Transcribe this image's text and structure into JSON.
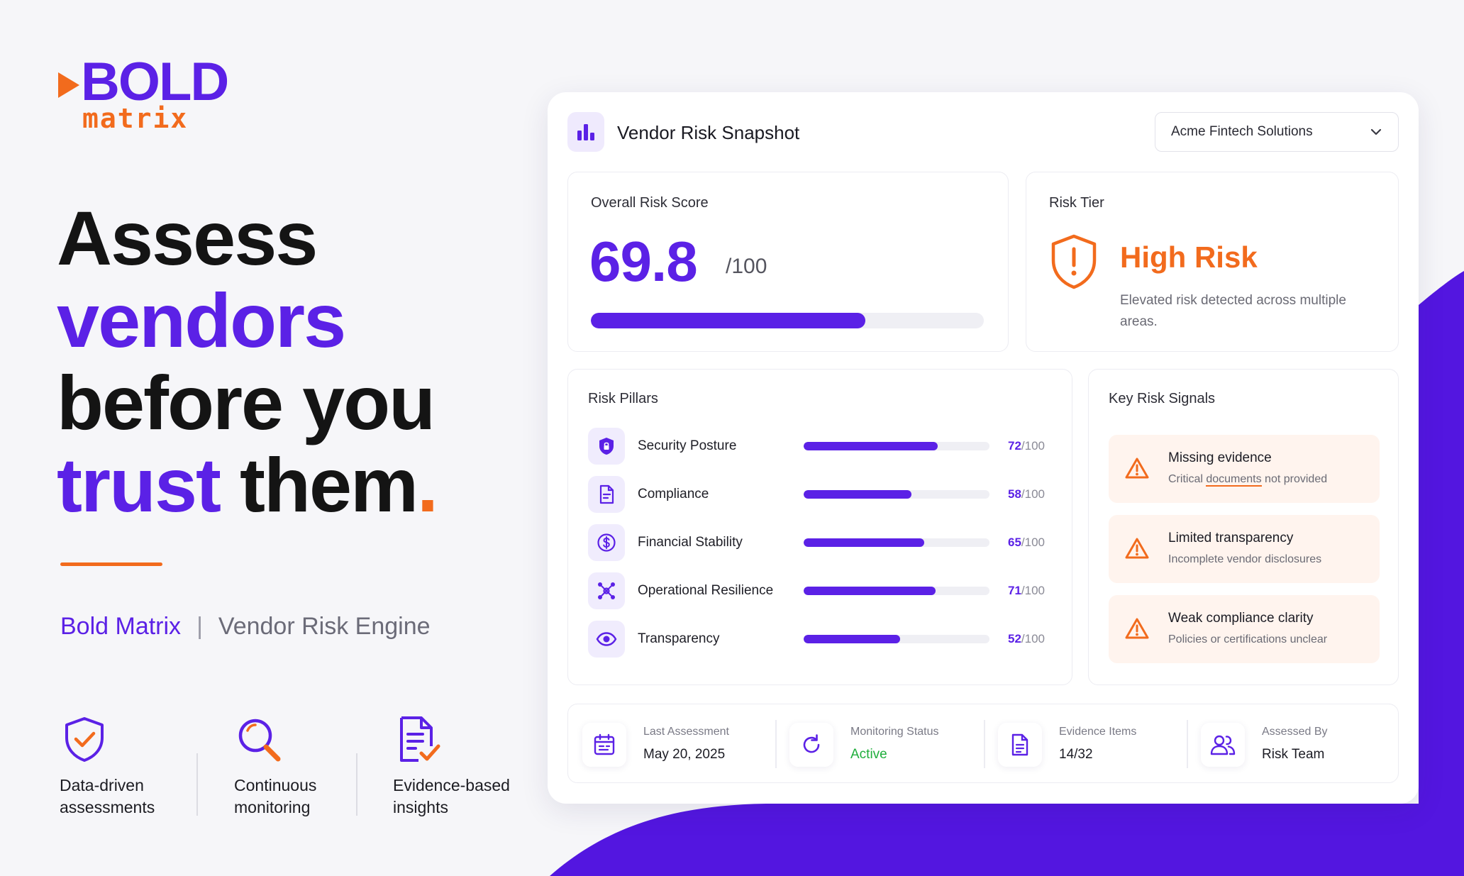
{
  "brand": {
    "logo_top": "BOLD",
    "logo_bottom": "matrix",
    "name": "Bold Matrix",
    "separator": "|",
    "product": "Vendor Risk Engine"
  },
  "headline": {
    "line1": "Assess",
    "line2": "vendors",
    "line3": "before you",
    "line4_a": "trust",
    "line4_b": " them",
    "line4_dot": "."
  },
  "features": [
    {
      "icon": "shield-check-icon",
      "label": "Data-driven assessments"
    },
    {
      "icon": "magnifier-icon",
      "label": "Continuous monitoring"
    },
    {
      "icon": "document-check-icon",
      "label": "Evidence-based insights"
    }
  ],
  "card": {
    "title": "Vendor Risk Snapshot",
    "vendor_select": {
      "value": "Acme Fintech Solutions"
    },
    "score": {
      "label": "Overall Risk Score",
      "value": "69.8",
      "max": "/100",
      "fraction": 0.698
    },
    "tier": {
      "label": "Risk Tier",
      "value": "High Risk",
      "description": "Elevated risk detected across multiple areas."
    },
    "pillars": {
      "title": "Risk Pillars",
      "items": [
        {
          "name": "Security Posture",
          "score": "72",
          "max": "/100",
          "fraction": 0.72,
          "icon": "shield-lock-icon"
        },
        {
          "name": "Compliance",
          "score": "58",
          "max": "/100",
          "fraction": 0.58,
          "icon": "document-icon"
        },
        {
          "name": "Financial Stability",
          "score": "65",
          "max": "/100",
          "fraction": 0.65,
          "icon": "dollar-icon"
        },
        {
          "name": "Operational Resilience",
          "score": "71",
          "max": "/100",
          "fraction": 0.71,
          "icon": "network-icon"
        },
        {
          "name": "Transparency",
          "score": "52",
          "max": "/100",
          "fraction": 0.52,
          "icon": "eye-icon"
        }
      ]
    },
    "signals": {
      "title": "Key Risk Signals",
      "items": [
        {
          "title": "Missing evidence",
          "sub_before": "Critical ",
          "sub_underline": "documents",
          "sub_after": " not provided"
        },
        {
          "title": "Limited transparency",
          "sub_before": "Incomplete vendor disclosures",
          "sub_underline": "",
          "sub_after": ""
        },
        {
          "title": "Weak compliance clarity",
          "sub_before": "Policies or certifications unclear",
          "sub_underline": "",
          "sub_after": ""
        }
      ]
    },
    "footer": [
      {
        "label": "Last Assessment",
        "value": "May 20, 2025",
        "icon": "calendar-icon"
      },
      {
        "label": "Monitoring Status",
        "value": "Active",
        "icon": "refresh-icon"
      },
      {
        "label": "Evidence Items",
        "value": "14/32",
        "icon": "file-icon"
      },
      {
        "label": "Assessed By",
        "value": "Risk Team",
        "icon": "users-icon"
      }
    ]
  },
  "colors": {
    "accent": "#5b21e6",
    "orange": "#f26b1d",
    "active": "#1fae3c"
  }
}
